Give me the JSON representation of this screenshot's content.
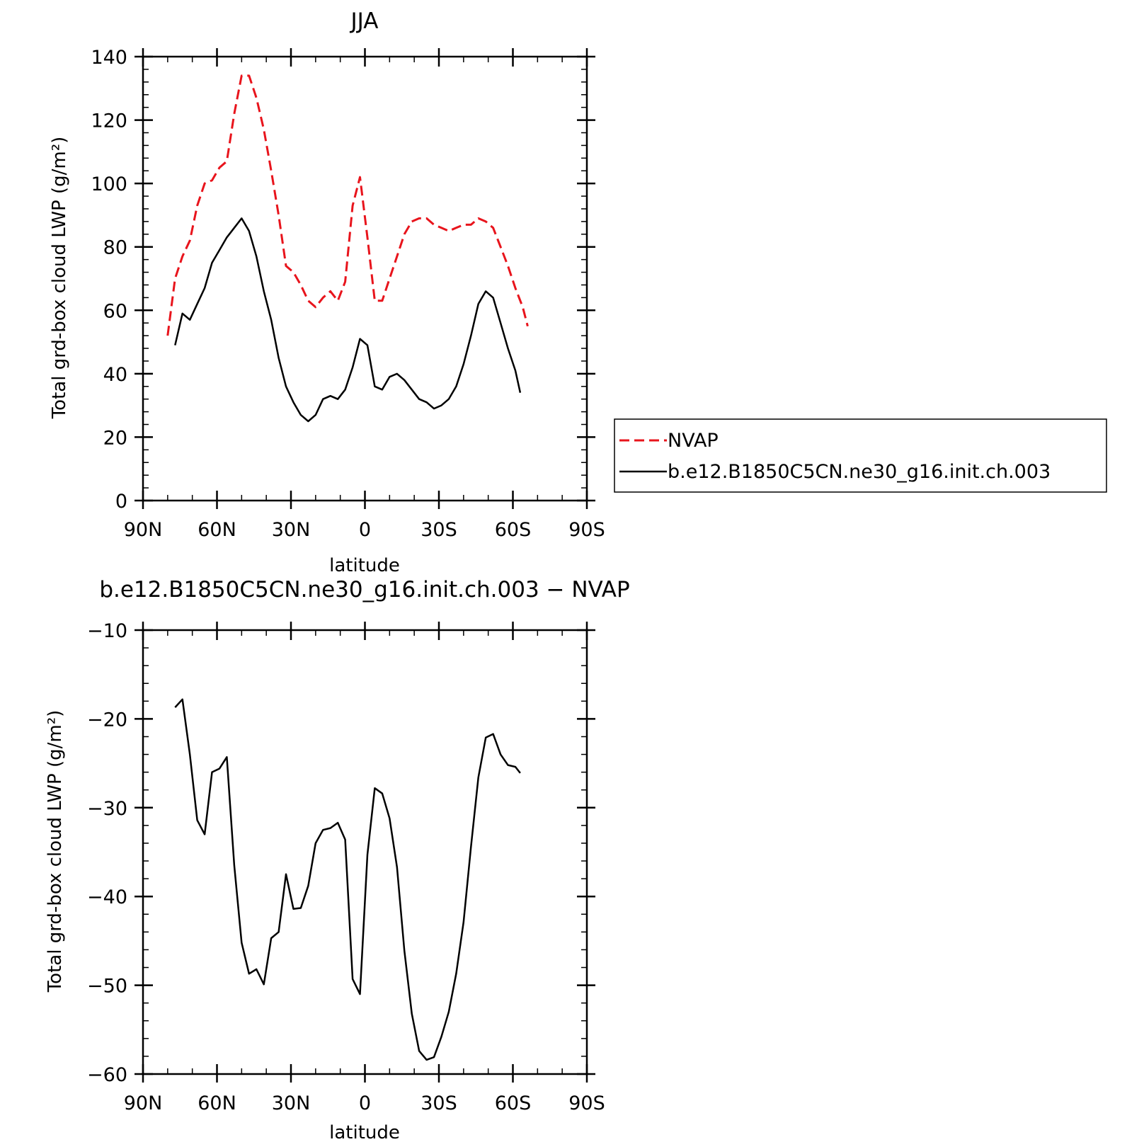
{
  "chart_data": [
    {
      "type": "line",
      "title": "JJA",
      "xlabel": "latitude",
      "ylabel": "Total grd-box cloud LWP (g/m²)",
      "xlim": [
        90,
        -90
      ],
      "ylim": [
        0,
        140
      ],
      "x_ticks": [
        90,
        60,
        30,
        0,
        -30,
        -60,
        -90
      ],
      "x_tick_labels": [
        "90N",
        "60N",
        "30N",
        "0",
        "30S",
        "60S",
        "90S"
      ],
      "y_ticks": [
        0,
        20,
        40,
        60,
        80,
        100,
        120,
        140
      ],
      "y_tick_labels": [
        "0",
        "20",
        "40",
        "60",
        "80",
        "100",
        "120",
        "140"
      ],
      "grid": false,
      "legend_position": "right",
      "series": [
        {
          "name": "NVAP",
          "color": "#e8141c",
          "dash": "dashed",
          "x": [
            80,
            77,
            74,
            71,
            68,
            65,
            62,
            59,
            56,
            53,
            50,
            47,
            44,
            41,
            38,
            35,
            32,
            29,
            26,
            23,
            20,
            17,
            14,
            11,
            8,
            5,
            2,
            -1,
            -4,
            -7,
            -10,
            -13,
            -16,
            -19,
            -22,
            -25,
            -28,
            -31,
            -34,
            -37,
            -40,
            -43,
            -46,
            -49,
            -52,
            -55,
            -58,
            -61,
            -64,
            -66
          ],
          "y": [
            52,
            70,
            77,
            82,
            93,
            100,
            101,
            105,
            107,
            122,
            134,
            134,
            127,
            117,
            104,
            90,
            74,
            72,
            68,
            63,
            61,
            64,
            66,
            63,
            69,
            93,
            102,
            83,
            63,
            63,
            70,
            77,
            84,
            88,
            89,
            89,
            87,
            86,
            85,
            86,
            87,
            87,
            89,
            88,
            86,
            80,
            74,
            67,
            61,
            55
          ]
        },
        {
          "name": "b.e12.B1850C5CN.ne30_g16.init.ch.003",
          "color": "#000000",
          "dash": "solid",
          "x": [
            77,
            74,
            71,
            68,
            65,
            62,
            59,
            56,
            53,
            50,
            47,
            44,
            41,
            38,
            35,
            32,
            29,
            26,
            23,
            20,
            17,
            14,
            11,
            8,
            5,
            2,
            -1,
            -4,
            -7,
            -10,
            -13,
            -16,
            -19,
            -22,
            -25,
            -28,
            -31,
            -34,
            -37,
            -40,
            -43,
            -46,
            -49,
            -52,
            -55,
            -58,
            -61,
            -63
          ],
          "y": [
            49,
            59,
            57,
            62,
            67,
            75,
            79,
            83,
            86,
            89,
            85,
            77,
            66,
            57,
            45,
            36,
            31,
            27,
            25,
            27,
            32,
            33,
            32,
            35,
            42,
            51,
            49,
            36,
            35,
            39,
            40,
            38,
            35,
            32,
            31,
            29,
            30,
            32,
            36,
            43,
            52,
            62,
            66,
            64,
            56,
            48,
            41,
            34
          ]
        }
      ]
    },
    {
      "type": "line",
      "title": "b.e12.B1850C5CN.ne30_g16.init.ch.003 − NVAP",
      "xlabel": "latitude",
      "ylabel": "Total grd-box cloud LWP (g/m²)",
      "xlim": [
        90,
        -90
      ],
      "ylim": [
        -60,
        -10
      ],
      "x_ticks": [
        90,
        60,
        30,
        0,
        -30,
        -60,
        -90
      ],
      "x_tick_labels": [
        "90N",
        "60N",
        "30N",
        "0",
        "30S",
        "60S",
        "90S"
      ],
      "y_ticks": [
        -60,
        -50,
        -40,
        -30,
        -20,
        -10
      ],
      "y_tick_labels": [
        "−60",
        "−50",
        "−40",
        "−30",
        "−20",
        "−10"
      ],
      "grid": false,
      "series": [
        {
          "color": "#000000",
          "dash": "solid",
          "x": [
            77,
            74,
            71,
            68,
            65,
            62,
            59,
            56,
            53,
            50,
            47,
            44,
            41,
            38,
            35,
            32,
            29,
            26,
            23,
            20,
            17,
            14,
            11,
            8,
            5,
            2,
            -1,
            -4,
            -7,
            -10,
            -13,
            -16,
            -19,
            -22,
            -25,
            -28,
            -31,
            -34,
            -37,
            -40,
            -43,
            -46,
            -49,
            -52,
            -55,
            -58,
            -61,
            -63
          ],
          "y": [
            -18.7,
            -17.8,
            -24,
            -31.4,
            -33,
            -26,
            -25.6,
            -24.3,
            -36.5,
            -45.2,
            -48.7,
            -48.2,
            -49.9,
            -44.7,
            -44,
            -37.5,
            -41.4,
            -41.3,
            -38.8,
            -34,
            -32.5,
            -32.3,
            -31.7,
            -33.6,
            -49.3,
            -51,
            -35.3,
            -27.8,
            -28.4,
            -31.2,
            -36.7,
            -46.1,
            -53.2,
            -57.4,
            -58.4,
            -58.1,
            -55.8,
            -53,
            -48.7,
            -42.9,
            -34.4,
            -26.6,
            -22.1,
            -21.7,
            -24,
            -25.2,
            -25.4,
            -26.1
          ]
        }
      ]
    }
  ]
}
